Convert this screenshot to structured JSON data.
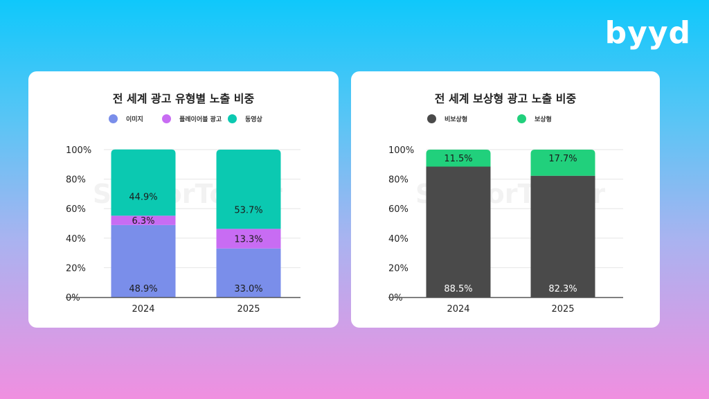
{
  "brand": {
    "logo_text": "byyd"
  },
  "colors": {
    "image": "#7a8eea",
    "playable": "#c86cf3",
    "video": "#0bc9b1",
    "non_rewarded": "#4a4a4a",
    "rewarded": "#21d07c"
  },
  "watermark": "SensorTower",
  "charts": [
    {
      "title": "전 세계 광고 유형별 노출 비중",
      "legend": [
        {
          "label": "이미지",
          "color": "#7a8eea"
        },
        {
          "label": "플레이어블 광고",
          "color": "#c86cf3"
        },
        {
          "label": "동영상",
          "color": "#0bc9b1"
        }
      ]
    },
    {
      "title": "전 세계 보상형 광고 노출 비중",
      "legend": [
        {
          "label": "비보상형",
          "color": "#4a4a4a"
        },
        {
          "label": "보상형",
          "color": "#21d07c"
        }
      ]
    }
  ],
  "chart_data": [
    {
      "type": "bar",
      "stacked": true,
      "title": "전 세계 광고 유형별 노출 비중",
      "categories": [
        "2024",
        "2025"
      ],
      "series": [
        {
          "name": "이미지",
          "values": [
            48.9,
            33.0
          ],
          "labels": [
            "48.9%",
            "33.0%"
          ],
          "label_color": "#1b1b1b"
        },
        {
          "name": "플레이어블 광고",
          "values": [
            6.3,
            13.3
          ],
          "labels": [
            "6.3%",
            "13.3%"
          ],
          "label_color": "#1b1b1b"
        },
        {
          "name": "동영상",
          "values": [
            44.9,
            53.7
          ],
          "labels": [
            "44.9%",
            "53.7%"
          ],
          "label_color": "#1b1b1b"
        }
      ],
      "yticks": [
        "0%",
        "20%",
        "40%",
        "60%",
        "80%",
        "100%"
      ],
      "ylim": [
        0,
        100
      ],
      "grid": true,
      "legend_position": "top"
    },
    {
      "type": "bar",
      "stacked": true,
      "title": "전 세계 보상형 광고 노출 비중",
      "categories": [
        "2024",
        "2025"
      ],
      "series": [
        {
          "name": "비보상형",
          "values": [
            88.5,
            82.3
          ],
          "labels": [
            "88.5%",
            "82.3%"
          ],
          "label_color": "#ffffff"
        },
        {
          "name": "보상형",
          "values": [
            11.5,
            17.7
          ],
          "labels": [
            "11.5%",
            "17.7%"
          ],
          "label_color": "#1b1b1b"
        }
      ],
      "yticks": [
        "0%",
        "20%",
        "40%",
        "60%",
        "80%",
        "100%"
      ],
      "ylim": [
        0,
        100
      ],
      "grid": true,
      "legend_position": "top"
    }
  ]
}
